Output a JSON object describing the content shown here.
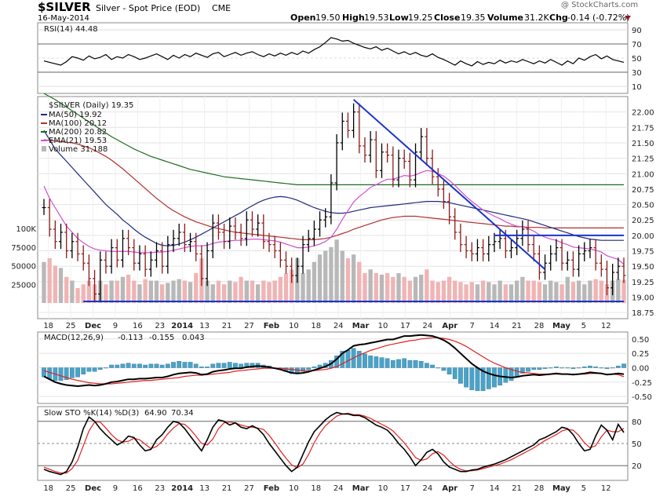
{
  "header": {
    "symbol": "$SILVER",
    "description": "Silver - Spot Price (EOD)",
    "exchange": "CME",
    "date": "16-May-2014",
    "copyright": "@ StockCharts.com",
    "quote": {
      "open_label": "Open",
      "open": "19.50",
      "high_label": "High",
      "high": "19.53",
      "low_label": "Low",
      "low": "19.25",
      "close_label": "Close",
      "close": "19.35",
      "volume_label": "Volume",
      "volume": "31.2K",
      "chg_label": "Chg",
      "chg": "-0.14 (-0.72%)"
    }
  },
  "colors": {
    "up": "#000000",
    "down": "#8b1a1a",
    "ma50": "#1f2a7a",
    "ma100": "#b03030",
    "ma200": "#1e6b1e",
    "ema21": "#d04fd0",
    "vol_up": "#b8b8b8",
    "vol_down": "#f0b4b4",
    "trend": "#1a33cc",
    "hist": "#4aa3c8",
    "stoch_k": "#000000",
    "stoch_d": "#e02020"
  },
  "chart_data": [
    {
      "type": "line",
      "name": "rsi-panel",
      "legend": "RSI(14) 44.48",
      "ylim": [
        0,
        100
      ],
      "yticks": [
        10,
        30,
        50,
        70,
        90
      ],
      "series": [
        {
          "name": "RSI(14)",
          "values": [
            46,
            44,
            42,
            40,
            45,
            52,
            50,
            47,
            53,
            49,
            51,
            55,
            48,
            52,
            50,
            55,
            52,
            48,
            50,
            53,
            56,
            52,
            48,
            54,
            50,
            55,
            52,
            57,
            54,
            51,
            56,
            58,
            52,
            55,
            58,
            54,
            57,
            59,
            55,
            52,
            56,
            53,
            57,
            54,
            58,
            55,
            60,
            57,
            62,
            66,
            72,
            79,
            77,
            74,
            75,
            71,
            68,
            65,
            63,
            66,
            61,
            64,
            60,
            56,
            59,
            55,
            58,
            54,
            52,
            56,
            51,
            48,
            44,
            40,
            46,
            42,
            39,
            45,
            41,
            44,
            42,
            47,
            43,
            46,
            44,
            48,
            45,
            42,
            46,
            43,
            48,
            44,
            40,
            46,
            42,
            50,
            47,
            52,
            55,
            49,
            53,
            48,
            46,
            44
          ]
        }
      ]
    },
    {
      "type": "line",
      "name": "price-panel",
      "legend": [
        "$SILVER (Daily) 19.35",
        "MA(50) 19.92",
        "MA(100) 20.12",
        "MA(200) 20.82",
        "EMA(21) 19.53",
        "Volume 31,188"
      ],
      "ylim": [
        18.65,
        22.25
      ],
      "yticks": [
        18.75,
        19.0,
        19.25,
        19.5,
        19.75,
        20.0,
        20.25,
        20.5,
        20.75,
        21.0,
        21.25,
        21.5,
        21.75,
        22.0
      ],
      "volume_ticks": [
        "25000",
        "50000",
        "75000",
        "100K"
      ],
      "x_labels": [
        "18",
        "25",
        "Dec",
        "9",
        "16",
        "23",
        "2014",
        "13",
        "21",
        "27",
        "Feb",
        "10",
        "18",
        "24",
        "Mar",
        "10",
        "17",
        "24",
        "Apr",
        "7",
        "14",
        "21",
        "28",
        "May",
        "5",
        "12"
      ],
      "close": [
        20.45,
        20.1,
        19.9,
        20.05,
        19.75,
        19.9,
        19.7,
        19.55,
        19.3,
        19.05,
        19.6,
        19.5,
        19.8,
        19.6,
        19.95,
        19.8,
        19.55,
        19.7,
        19.45,
        19.6,
        19.75,
        19.5,
        19.85,
        19.95,
        20.05,
        19.85,
        19.9,
        19.7,
        19.3,
        19.75,
        20.2,
        20.05,
        19.9,
        20.15,
        20.05,
        19.95,
        20.25,
        20.1,
        20.2,
        19.9,
        19.85,
        19.75,
        19.6,
        19.5,
        19.35,
        19.5,
        19.85,
        19.95,
        20.1,
        20.25,
        20.3,
        20.85,
        21.5,
        21.85,
        21.7,
        22.0,
        21.45,
        21.3,
        21.55,
        21.05,
        21.35,
        21.3,
        20.9,
        21.25,
        21.2,
        20.9,
        21.35,
        21.6,
        21.25,
        20.95,
        20.75,
        20.55,
        20.3,
        20.05,
        19.85,
        19.75,
        19.7,
        19.8,
        19.7,
        19.85,
        19.9,
        19.95,
        19.75,
        19.8,
        19.95,
        20.1,
        19.85,
        19.7,
        19.4,
        19.55,
        19.7,
        19.8,
        19.55,
        19.6,
        19.45,
        19.7,
        19.75,
        19.8,
        19.55,
        19.45,
        19.15,
        19.4,
        19.5,
        19.35
      ],
      "volume": [
        55,
        60,
        50,
        47,
        35,
        30,
        20,
        25,
        30,
        25,
        30,
        25,
        30,
        30,
        35,
        38,
        30,
        25,
        32,
        30,
        30,
        25,
        27,
        30,
        32,
        30,
        28,
        40,
        60,
        30,
        25,
        30,
        25,
        30,
        28,
        35,
        30,
        30,
        25,
        30,
        28,
        30,
        35,
        40,
        45,
        60,
        40,
        45,
        55,
        65,
        70,
        75,
        85,
        70,
        60,
        65,
        55,
        40,
        45,
        40,
        38,
        40,
        35,
        40,
        35,
        30,
        35,
        38,
        45,
        30,
        28,
        30,
        35,
        30,
        28,
        25,
        28,
        25,
        30,
        28,
        25,
        30,
        25,
        25,
        30,
        35,
        30,
        30,
        28,
        25,
        30,
        28,
        25,
        35,
        28,
        30,
        25,
        30,
        32,
        30,
        25,
        30,
        32,
        31
      ],
      "ma50": [
        21.7,
        21.55,
        21.4,
        21.3,
        21.2,
        21.1,
        21.0,
        20.9,
        20.8,
        20.7,
        20.6,
        20.5,
        20.42,
        20.34,
        20.25,
        20.18,
        20.1,
        20.03,
        19.97,
        19.92,
        19.87,
        19.84,
        19.83,
        19.84,
        19.86,
        19.89,
        19.93,
        19.97,
        20.02,
        20.07,
        20.12,
        20.17,
        20.22,
        20.27,
        20.32,
        20.37,
        20.43,
        20.48,
        20.53,
        20.57,
        20.6,
        20.62,
        20.63,
        20.62,
        20.6,
        20.57,
        20.53,
        20.49,
        20.45,
        20.42,
        20.39,
        20.37,
        20.36,
        20.36,
        20.37,
        20.39,
        20.41,
        20.43,
        20.45,
        20.46,
        20.47,
        20.48,
        20.49,
        20.5,
        20.51,
        20.52,
        20.53,
        20.54,
        20.55,
        20.55,
        20.55,
        20.54,
        20.53,
        20.51,
        20.49,
        20.47,
        20.45,
        20.43,
        20.41,
        20.39,
        20.37,
        20.35,
        20.33,
        20.31,
        20.29,
        20.27,
        20.25,
        20.22,
        20.19,
        20.16,
        20.13,
        20.1,
        20.07,
        20.04,
        20.01,
        19.98,
        19.96,
        19.94,
        19.93,
        19.92,
        19.92,
        19.92,
        19.92,
        19.92
      ],
      "ma100": [
        21.55,
        21.54,
        21.53,
        21.52,
        21.51,
        21.5,
        21.48,
        21.45,
        21.42,
        21.38,
        21.33,
        21.28,
        21.22,
        21.15,
        21.08,
        21.0,
        20.92,
        20.84,
        20.76,
        20.68,
        20.6,
        20.53,
        20.46,
        20.4,
        20.35,
        20.3,
        20.26,
        20.22,
        20.19,
        20.16,
        20.13,
        20.11,
        20.09,
        20.07,
        20.05,
        20.04,
        20.03,
        20.02,
        20.01,
        20.0,
        19.99,
        19.98,
        19.97,
        19.96,
        19.95,
        19.94,
        19.93,
        19.93,
        19.93,
        19.94,
        19.95,
        19.97,
        20.0,
        20.03,
        20.06,
        20.1,
        20.13,
        20.16,
        20.19,
        20.22,
        20.25,
        20.27,
        20.29,
        20.3,
        20.31,
        20.31,
        20.31,
        20.3,
        20.29,
        20.28,
        20.27,
        20.26,
        20.25,
        20.24,
        20.23,
        20.22,
        20.21,
        20.2,
        20.19,
        20.18,
        20.17,
        20.16,
        20.15,
        20.15,
        20.14,
        20.14,
        20.13,
        20.13,
        20.13,
        20.12,
        20.12,
        20.12,
        20.12,
        20.12,
        20.12,
        20.12,
        20.12,
        20.12,
        20.12,
        20.12,
        20.12,
        20.12,
        20.12,
        20.12
      ],
      "ma200": [
        22.3,
        22.25,
        22.2,
        22.14,
        22.08,
        22.02,
        21.96,
        21.9,
        21.84,
        21.78,
        21.72,
        21.66,
        21.6,
        21.55,
        21.5,
        21.45,
        21.4,
        21.36,
        21.32,
        21.28,
        21.25,
        21.22,
        21.19,
        21.16,
        21.13,
        21.1,
        21.07,
        21.05,
        21.03,
        21.01,
        20.99,
        20.97,
        20.95,
        20.94,
        20.93,
        20.92,
        20.91,
        20.9,
        20.89,
        20.88,
        20.87,
        20.86,
        20.85,
        20.84,
        20.83,
        20.82,
        20.82,
        20.82,
        20.82,
        20.82,
        20.82,
        20.82,
        20.82,
        20.82,
        20.82,
        20.82,
        20.82,
        20.82,
        20.82,
        20.82,
        20.82,
        20.82,
        20.82,
        20.82,
        20.82,
        20.82,
        20.82,
        20.82,
        20.82,
        20.82,
        20.82,
        20.82,
        20.82,
        20.82,
        20.82,
        20.82,
        20.82,
        20.82,
        20.82,
        20.82,
        20.82,
        20.82,
        20.82,
        20.82,
        20.82,
        20.82,
        20.82,
        20.82,
        20.82,
        20.82,
        20.82,
        20.82,
        20.82,
        20.82,
        20.82,
        20.82,
        20.82,
        20.82,
        20.82,
        20.82,
        20.82,
        20.82,
        20.82,
        20.82
      ],
      "ema21": [
        20.8,
        20.6,
        20.45,
        20.3,
        20.15,
        20.05,
        19.95,
        19.88,
        19.82,
        19.78,
        19.76,
        19.75,
        19.74,
        19.74,
        19.74,
        19.74,
        19.73,
        19.72,
        19.72,
        19.72,
        19.73,
        19.73,
        19.74,
        19.76,
        19.78,
        19.8,
        19.82,
        19.83,
        19.83,
        19.84,
        19.87,
        19.89,
        19.9,
        19.91,
        19.92,
        19.92,
        19.93,
        19.94,
        19.94,
        19.93,
        19.92,
        19.91,
        19.89,
        19.86,
        19.83,
        19.8,
        19.8,
        19.81,
        19.83,
        19.86,
        19.9,
        19.97,
        20.1,
        20.26,
        20.4,
        20.54,
        20.63,
        20.7,
        20.78,
        20.82,
        20.87,
        20.91,
        20.91,
        20.94,
        20.97,
        20.96,
        20.98,
        21.02,
        21.05,
        21.04,
        21.0,
        20.96,
        20.89,
        20.81,
        20.72,
        20.63,
        20.55,
        20.48,
        20.41,
        20.36,
        20.31,
        20.27,
        20.22,
        20.18,
        20.15,
        20.14,
        20.11,
        20.07,
        20.01,
        19.97,
        19.94,
        19.92,
        19.88,
        19.85,
        19.81,
        19.8,
        19.79,
        19.78,
        19.76,
        19.73,
        19.67,
        19.64,
        19.61,
        19.53
      ]
    },
    {
      "type": "line",
      "name": "macd-panel",
      "legend": [
        "MACD(12,26,9)",
        "-0.113",
        "-0.155",
        "0.043"
      ],
      "ylim": [
        -0.62,
        0.62
      ],
      "yticks": [
        -0.5,
        -0.25,
        0.0,
        0.25,
        0.5
      ],
      "macd": [
        -0.15,
        -0.2,
        -0.25,
        -0.28,
        -0.3,
        -0.31,
        -0.32,
        -0.31,
        -0.3,
        -0.31,
        -0.3,
        -0.28,
        -0.25,
        -0.24,
        -0.22,
        -0.2,
        -0.2,
        -0.19,
        -0.19,
        -0.18,
        -0.17,
        -0.17,
        -0.15,
        -0.12,
        -0.1,
        -0.09,
        -0.08,
        -0.09,
        -0.12,
        -0.11,
        -0.07,
        -0.05,
        -0.04,
        -0.02,
        -0.01,
        -0.01,
        0.01,
        0.02,
        0.03,
        0.02,
        0.01,
        -0.01,
        -0.03,
        -0.06,
        -0.09,
        -0.1,
        -0.09,
        -0.07,
        -0.04,
        -0.01,
        0.02,
        0.07,
        0.15,
        0.25,
        0.31,
        0.38,
        0.4,
        0.41,
        0.43,
        0.45,
        0.47,
        0.49,
        0.49,
        0.52,
        0.55,
        0.55,
        0.56,
        0.57,
        0.56,
        0.55,
        0.52,
        0.48,
        0.42,
        0.34,
        0.25,
        0.16,
        0.07,
        0.0,
        -0.06,
        -0.1,
        -0.13,
        -0.15,
        -0.16,
        -0.17,
        -0.16,
        -0.14,
        -0.13,
        -0.12,
        -0.13,
        -0.12,
        -0.11,
        -0.1,
        -0.11,
        -0.11,
        -0.12,
        -0.11,
        -0.1,
        -0.08,
        -0.09,
        -0.1,
        -0.12,
        -0.11,
        -0.1,
        -0.113
      ],
      "signal": [
        -0.05,
        -0.08,
        -0.11,
        -0.14,
        -0.17,
        -0.2,
        -0.22,
        -0.24,
        -0.26,
        -0.27,
        -0.28,
        -0.28,
        -0.28,
        -0.27,
        -0.26,
        -0.25,
        -0.24,
        -0.23,
        -0.22,
        -0.22,
        -0.21,
        -0.2,
        -0.19,
        -0.18,
        -0.17,
        -0.15,
        -0.14,
        -0.13,
        -0.13,
        -0.12,
        -0.11,
        -0.1,
        -0.09,
        -0.08,
        -0.06,
        -0.05,
        -0.04,
        -0.03,
        -0.02,
        -0.01,
        -0.01,
        -0.01,
        -0.01,
        -0.02,
        -0.03,
        -0.04,
        -0.05,
        -0.05,
        -0.05,
        -0.04,
        -0.03,
        -0.01,
        0.02,
        0.07,
        0.12,
        0.17,
        0.22,
        0.26,
        0.3,
        0.33,
        0.36,
        0.39,
        0.41,
        0.43,
        0.45,
        0.47,
        0.48,
        0.5,
        0.51,
        0.52,
        0.52,
        0.51,
        0.49,
        0.46,
        0.42,
        0.37,
        0.31,
        0.25,
        0.19,
        0.13,
        0.08,
        0.04,
        0.0,
        -0.03,
        -0.06,
        -0.08,
        -0.09,
        -0.1,
        -0.11,
        -0.11,
        -0.11,
        -0.11,
        -0.11,
        -0.11,
        -0.11,
        -0.11,
        -0.11,
        -0.1,
        -0.1,
        -0.1,
        -0.11,
        -0.11,
        -0.12,
        -0.155
      ]
    },
    {
      "type": "line",
      "name": "stochastic-panel",
      "legend": [
        "Slow STO %K(14) %D(3)",
        "64.90",
        "70.34"
      ],
      "ylim": [
        0,
        100
      ],
      "yticks": [
        20,
        50,
        80
      ],
      "k": [
        15,
        12,
        10,
        8,
        12,
        25,
        45,
        70,
        86,
        80,
        70,
        62,
        55,
        48,
        52,
        60,
        58,
        48,
        40,
        42,
        55,
        62,
        72,
        80,
        78,
        70,
        60,
        50,
        40,
        55,
        72,
        82,
        80,
        75,
        78,
        72,
        70,
        74,
        70,
        62,
        50,
        40,
        30,
        20,
        12,
        18,
        35,
        52,
        66,
        74,
        82,
        88,
        92,
        90,
        90,
        88,
        88,
        85,
        80,
        75,
        72,
        68,
        60,
        50,
        42,
        32,
        20,
        28,
        38,
        42,
        36,
        25,
        18,
        15,
        12,
        12,
        14,
        15,
        18,
        20,
        22,
        25,
        28,
        32,
        36,
        40,
        44,
        48,
        55,
        58,
        62,
        66,
        72,
        70,
        62,
        50,
        40,
        42,
        60,
        75,
        68,
        55,
        76,
        64.9
      ],
      "d": [
        18,
        15,
        12,
        10,
        10,
        16,
        27,
        47,
        67,
        79,
        79,
        71,
        62,
        55,
        52,
        53,
        57,
        55,
        49,
        43,
        46,
        53,
        63,
        71,
        77,
        76,
        69,
        60,
        50,
        48,
        56,
        70,
        78,
        79,
        78,
        75,
        73,
        72,
        71,
        69,
        61,
        51,
        40,
        30,
        21,
        17,
        22,
        35,
        51,
        64,
        74,
        81,
        87,
        90,
        91,
        89,
        89,
        87,
        84,
        80,
        76,
        72,
        67,
        59,
        51,
        41,
        31,
        27,
        29,
        36,
        39,
        34,
        26,
        19,
        15,
        13,
        13,
        14,
        16,
        18,
        20,
        22,
        25,
        28,
        32,
        36,
        40,
        44,
        49,
        54,
        58,
        62,
        67,
        69,
        68,
        61,
        51,
        44,
        47,
        59,
        68,
        66,
        66,
        70.34
      ]
    }
  ]
}
